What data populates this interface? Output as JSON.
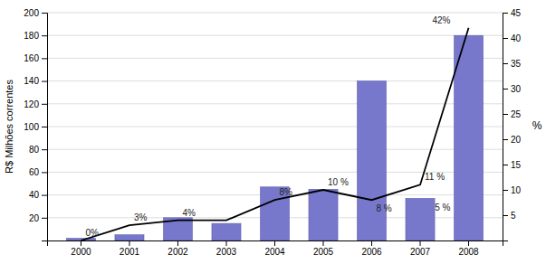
{
  "chart_data": {
    "type": "bar",
    "categories": [
      "2000",
      "2001",
      "2002",
      "2003",
      "2004",
      "2005",
      "2006",
      "2007",
      "2008"
    ],
    "series": [
      {
        "type": "bar",
        "color": "#7777cc",
        "values": [
          2,
          5,
          20,
          15,
          47,
          45,
          140,
          37,
          180
        ]
      },
      {
        "type": "line",
        "color": "#000000",
        "axis": "y2",
        "values": [
          0,
          3,
          4,
          4,
          8,
          10,
          8,
          11,
          42
        ]
      }
    ],
    "ylabel": "R$ Milhões correntes",
    "y2label": "%",
    "ylim": [
      0,
      200
    ],
    "yticks": [
      20,
      40,
      60,
      80,
      100,
      120,
      140,
      160,
      180,
      200
    ],
    "y2lim": [
      0,
      45
    ],
    "y2ticks": [
      5,
      10,
      15,
      20,
      25,
      30,
      35,
      40,
      45
    ],
    "grid": true,
    "annotations": [
      {
        "text": "0%",
        "category": "2000",
        "y": 0
      },
      {
        "text": "3%",
        "category": "2001",
        "y": 3
      },
      {
        "text": "4%",
        "category": "2002",
        "y": 4
      },
      {
        "text": "8%",
        "category": "2004",
        "y": 8
      },
      {
        "text": "10 %",
        "category": "2005",
        "y": 10
      },
      {
        "text": "8 %",
        "category": "2006",
        "y": 8
      },
      {
        "text": "11 %",
        "category": "2007",
        "y": 11
      },
      {
        "text": "42%",
        "category": "2008",
        "y": 42
      },
      {
        "text": "5 %",
        "category": "2008",
        "y": 5
      }
    ]
  }
}
